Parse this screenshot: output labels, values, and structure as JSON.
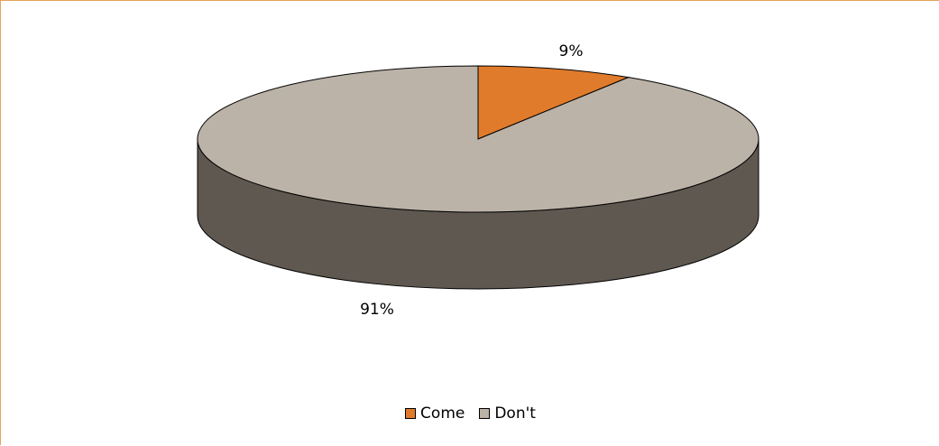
{
  "chart_data": {
    "type": "pie",
    "title": "",
    "categories": [
      "Come",
      "Don't"
    ],
    "values": [
      9,
      91
    ],
    "data_labels": [
      "9%",
      "91%"
    ],
    "colors": [
      "#e07b2b",
      "#bcb3a8"
    ],
    "side_color": "#5f5851",
    "legend_position": "bottom",
    "style": "3d-pie"
  }
}
